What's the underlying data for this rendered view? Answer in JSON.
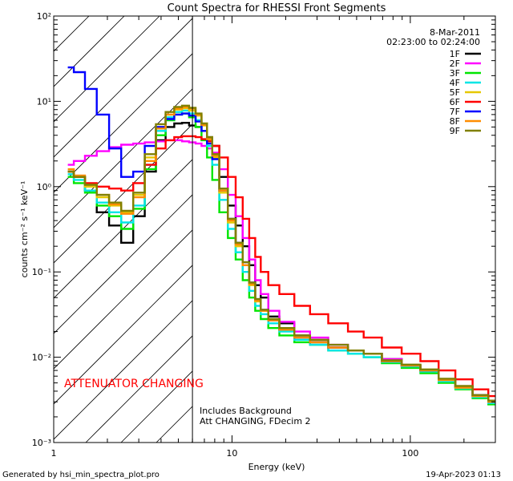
{
  "chart_data": {
    "type": "line",
    "title": "Count Spectra for RHESSI Front Segments",
    "xlabel": "Energy (keV)",
    "ylabel": "counts cm⁻² s⁻¹ keV⁻¹",
    "xscale": "log",
    "yscale": "log",
    "xlim": [
      1,
      300
    ],
    "ylim": [
      0.001,
      100
    ],
    "x_ticks": [
      {
        "value": 1,
        "label": "1"
      },
      {
        "value": 10,
        "label": "10"
      },
      {
        "value": 100,
        "label": "100"
      }
    ],
    "y_ticks": [
      {
        "value": 0.001,
        "label": "10⁻³"
      },
      {
        "value": 0.01,
        "label": "10⁻²"
      },
      {
        "value": 0.1,
        "label": "10⁻¹"
      },
      {
        "value": 1,
        "label": "10⁰"
      },
      {
        "value": 10,
        "label": "10¹"
      },
      {
        "value": 100,
        "label": "10²"
      }
    ],
    "legend_position": "top-right",
    "legend_header": [
      "8-Mar-2011",
      "02:23:00 to 02:24:00"
    ],
    "series": [
      {
        "name": "1F",
        "color": "#000000",
        "x": [
          1.2,
          1.4,
          1.6,
          1.9,
          2.2,
          2.6,
          3,
          3.5,
          4,
          4.5,
          5,
          5.5,
          6,
          6.5,
          7,
          7.5,
          8,
          9,
          10,
          11,
          12,
          13,
          14,
          15,
          17,
          20,
          25,
          30,
          40,
          50,
          60,
          80,
          100,
          130,
          160,
          200,
          250,
          300
        ],
        "y": [
          1.5,
          1.3,
          0.9,
          0.5,
          0.35,
          0.22,
          0.45,
          1.5,
          3.5,
          5,
          5.5,
          5.6,
          5.2,
          5,
          4.5,
          3.8,
          3,
          1.3,
          0.6,
          0.35,
          0.2,
          0.12,
          0.07,
          0.05,
          0.03,
          0.025,
          0.018,
          0.016,
          0.013,
          0.012,
          0.011,
          0.0095,
          0.008,
          0.007,
          0.0055,
          0.0045,
          0.0035,
          0.003
        ]
      },
      {
        "name": "2F",
        "color": "#ff00ff",
        "x": [
          1.2,
          1.4,
          1.6,
          1.9,
          2.2,
          2.6,
          3,
          3.5,
          4,
          4.5,
          5,
          5.5,
          6,
          6.5,
          7,
          7.5,
          8,
          9,
          10,
          11,
          12,
          13,
          14,
          15,
          17,
          20,
          25,
          30,
          40,
          50,
          60,
          80,
          100,
          130,
          160,
          200,
          250,
          300
        ],
        "y": [
          1.8,
          2,
          2.3,
          2.6,
          2.9,
          3.1,
          3.2,
          3.3,
          3.4,
          3.5,
          3.5,
          3.4,
          3.3,
          3.2,
          3,
          2.8,
          2.5,
          1.6,
          0.8,
          0.45,
          0.25,
          0.14,
          0.08,
          0.055,
          0.035,
          0.026,
          0.02,
          0.017,
          0.014,
          0.012,
          0.011,
          0.0095,
          0.008,
          0.007,
          0.0055,
          0.0045,
          0.0035,
          0.003
        ]
      },
      {
        "name": "3F",
        "color": "#00e600",
        "x": [
          1.2,
          1.4,
          1.6,
          1.9,
          2.2,
          2.6,
          3,
          3.5,
          4,
          4.5,
          5,
          5.5,
          6,
          6.5,
          7,
          7.5,
          8,
          9,
          10,
          11,
          12,
          13,
          14,
          15,
          17,
          20,
          25,
          30,
          40,
          50,
          60,
          80,
          100,
          130,
          160,
          200,
          250,
          300
        ],
        "y": [
          1.3,
          1.1,
          0.85,
          0.6,
          0.45,
          0.32,
          0.55,
          1.6,
          4,
          6,
          7,
          7.2,
          6.5,
          5,
          3.5,
          2.2,
          1.2,
          0.5,
          0.25,
          0.14,
          0.08,
          0.05,
          0.035,
          0.028,
          0.022,
          0.018,
          0.015,
          0.014,
          0.012,
          0.011,
          0.01,
          0.0085,
          0.0075,
          0.0065,
          0.005,
          0.0042,
          0.0033,
          0.0028
        ]
      },
      {
        "name": "4F",
        "color": "#00e6e6",
        "x": [
          1.2,
          1.4,
          1.6,
          1.9,
          2.2,
          2.6,
          3,
          3.5,
          4,
          4.5,
          5,
          5.5,
          6,
          6.5,
          7,
          7.5,
          8,
          9,
          10,
          11,
          12,
          13,
          14,
          15,
          17,
          20,
          25,
          30,
          40,
          50,
          60,
          80,
          100,
          130,
          160,
          200,
          250,
          300
        ],
        "y": [
          1.4,
          1.2,
          0.9,
          0.65,
          0.5,
          0.38,
          0.6,
          1.8,
          4.5,
          6.5,
          7.5,
          7.8,
          7.2,
          6,
          4.5,
          3,
          1.8,
          0.7,
          0.32,
          0.17,
          0.1,
          0.06,
          0.04,
          0.032,
          0.025,
          0.02,
          0.016,
          0.014,
          0.012,
          0.011,
          0.01,
          0.0088,
          0.0078,
          0.0068,
          0.0052,
          0.0043,
          0.0034,
          0.0029
        ]
      },
      {
        "name": "5F",
        "color": "#e6c800",
        "x": [
          1.2,
          1.4,
          1.6,
          1.9,
          2.2,
          2.6,
          3,
          3.5,
          4,
          4.5,
          5,
          5.5,
          6,
          6.5,
          7,
          7.5,
          8,
          9,
          10,
          11,
          12,
          13,
          14,
          15,
          17,
          20,
          25,
          30,
          40,
          50,
          60,
          80,
          100,
          130,
          160,
          200,
          250,
          300
        ],
        "y": [
          1.5,
          1.3,
          1,
          0.75,
          0.6,
          0.5,
          0.8,
          2.2,
          5,
          7,
          8,
          8.3,
          7.8,
          6.8,
          5.2,
          3.5,
          2.2,
          0.85,
          0.38,
          0.2,
          0.12,
          0.07,
          0.045,
          0.035,
          0.027,
          0.021,
          0.017,
          0.015,
          0.013,
          0.012,
          0.011,
          0.009,
          0.008,
          0.007,
          0.0054,
          0.0044,
          0.0035,
          0.003
        ]
      },
      {
        "name": "6F",
        "color": "#ff0000",
        "x": [
          1.2,
          1.4,
          1.6,
          1.9,
          2.2,
          2.6,
          3,
          3.5,
          4,
          4.5,
          5,
          5.5,
          6,
          6.5,
          7,
          7.5,
          8,
          9,
          10,
          11,
          12,
          13,
          14,
          15,
          17,
          20,
          25,
          30,
          40,
          50,
          60,
          80,
          100,
          130,
          160,
          200,
          250,
          300
        ],
        "y": [
          1.5,
          1.3,
          1.1,
          1,
          0.95,
          0.9,
          1.1,
          1.8,
          2.8,
          3.5,
          3.8,
          3.9,
          3.9,
          3.8,
          3.6,
          3.4,
          3,
          2.2,
          1.3,
          0.75,
          0.42,
          0.25,
          0.15,
          0.1,
          0.07,
          0.055,
          0.04,
          0.032,
          0.025,
          0.02,
          0.017,
          0.013,
          0.011,
          0.009,
          0.007,
          0.0055,
          0.0042,
          0.0035
        ]
      },
      {
        "name": "7F",
        "color": "#0000ff",
        "x": [
          1.2,
          1.4,
          1.6,
          1.9,
          2.2,
          2.6,
          3,
          3.5,
          4,
          4.5,
          5,
          5.5,
          6,
          6.5,
          7,
          7.5,
          8,
          9,
          10,
          11,
          12,
          13,
          14,
          15,
          17,
          20,
          25,
          30,
          40,
          50,
          60,
          80,
          100,
          130,
          160,
          200,
          250,
          300
        ],
        "y": [
          25,
          22,
          14,
          7,
          2.8,
          1.3,
          1.5,
          3,
          5,
          6.2,
          7,
          7.2,
          6.8,
          5.8,
          4.5,
          3.2,
          2.1,
          0.9,
          0.42,
          0.22,
          0.13,
          0.075,
          0.048,
          0.036,
          0.027,
          0.021,
          0.017,
          0.015,
          0.013,
          0.012,
          0.011,
          0.009,
          0.008,
          0.007,
          0.0055,
          0.0045,
          0.0036,
          0.003
        ]
      },
      {
        "name": "8F",
        "color": "#ff8c00",
        "x": [
          1.2,
          1.4,
          1.6,
          1.9,
          2.2,
          2.6,
          3,
          3.5,
          4,
          4.5,
          5,
          5.5,
          6,
          6.5,
          7,
          7.5,
          8,
          9,
          10,
          11,
          12,
          13,
          14,
          15,
          17,
          20,
          25,
          30,
          40,
          50,
          60,
          80,
          100,
          130,
          160,
          200,
          250,
          300
        ],
        "y": [
          1.6,
          1.35,
          1.05,
          0.8,
          0.62,
          0.48,
          0.75,
          2,
          4.8,
          7,
          8.2,
          8.6,
          8.2,
          7,
          5.3,
          3.6,
          2.3,
          0.9,
          0.4,
          0.21,
          0.12,
          0.072,
          0.046,
          0.035,
          0.027,
          0.021,
          0.017,
          0.015,
          0.013,
          0.012,
          0.011,
          0.009,
          0.008,
          0.007,
          0.0054,
          0.0044,
          0.0035,
          0.003
        ]
      },
      {
        "name": "9F",
        "color": "#808000",
        "x": [
          1.2,
          1.4,
          1.6,
          1.9,
          2.2,
          2.6,
          3,
          3.5,
          4,
          4.5,
          5,
          5.5,
          6,
          6.5,
          7,
          7.5,
          8,
          9,
          10,
          11,
          12,
          13,
          14,
          15,
          17,
          20,
          25,
          30,
          40,
          50,
          60,
          80,
          100,
          130,
          160,
          200,
          250,
          300
        ],
        "y": [
          1.5,
          1.3,
          1.05,
          0.8,
          0.65,
          0.52,
          0.85,
          2.4,
          5.4,
          7.5,
          8.6,
          8.9,
          8.4,
          7.2,
          5.5,
          3.8,
          2.4,
          0.95,
          0.42,
          0.22,
          0.13,
          0.075,
          0.048,
          0.036,
          0.028,
          0.022,
          0.018,
          0.016,
          0.014,
          0.012,
          0.011,
          0.0092,
          0.0082,
          0.0072,
          0.0056,
          0.0046,
          0.0036,
          0.0031
        ]
      }
    ],
    "annotations": {
      "attenuator": "ATTENUATOR CHANGING",
      "background_line1": "Includes Background",
      "background_line2": "Att CHANGING, FDecim 2"
    },
    "attenuator_boundary_keV": 6,
    "hatch_region_keV": [
      1,
      6
    ]
  },
  "footer": {
    "generated_by": "Generated by hsi_min_spectra_plot.pro",
    "date": "19-Apr-2023 01:13"
  },
  "colors": {
    "attenuator_text": "#ff0000",
    "axes": "#000000",
    "background": "#ffffff"
  }
}
